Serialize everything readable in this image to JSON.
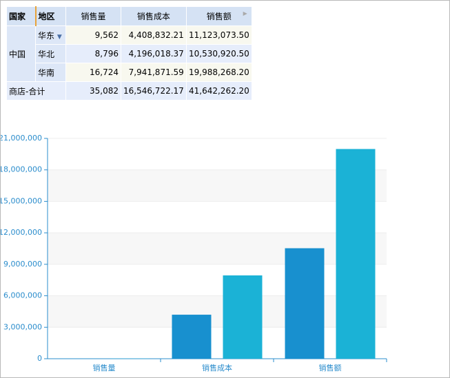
{
  "table": {
    "headers": [
      "国家",
      "地区",
      "销售量",
      "销售成本",
      "销售额"
    ],
    "group": "中国",
    "rows": [
      [
        "华东",
        "9,562",
        "4,408,832.21",
        "11,123,073.50"
      ],
      [
        "华北",
        "8,796",
        "4,196,018.37",
        "10,530,920.50"
      ],
      [
        "华南",
        "16,724",
        "7,941,871.59",
        "19,988,268.20"
      ]
    ],
    "total": [
      "商店-合计",
      "35,082",
      "16,546,722.17",
      "41,642,262.20"
    ]
  },
  "chart_data": {
    "type": "bar",
    "categories": [
      "销售量",
      "销售成本",
      "销售额"
    ],
    "series": [
      {
        "color": "#1890cf",
        "values": [
          8796,
          4196018.37,
          10530920.5
        ]
      },
      {
        "color": "#1bb2d6",
        "values": [
          16724,
          7941871.59,
          19988268.2
        ]
      }
    ],
    "ylim": [
      0,
      21000000
    ],
    "yticks": [
      0,
      {
        "value": 3000000,
        "label": "3,000,000"
      },
      {
        "value": 6000000,
        "label": "6,000,000"
      },
      {
        "value": 9000000,
        "label": "9,000,000"
      },
      {
        "value": 12000000,
        "label": "12,000,000"
      },
      {
        "value": 15000000,
        "label": "15,000,000"
      },
      {
        "value": 18000000,
        "label": "18,000,000"
      },
      {
        "value": 21000000,
        "label": "21,000,000"
      }
    ],
    "grid": true
  }
}
